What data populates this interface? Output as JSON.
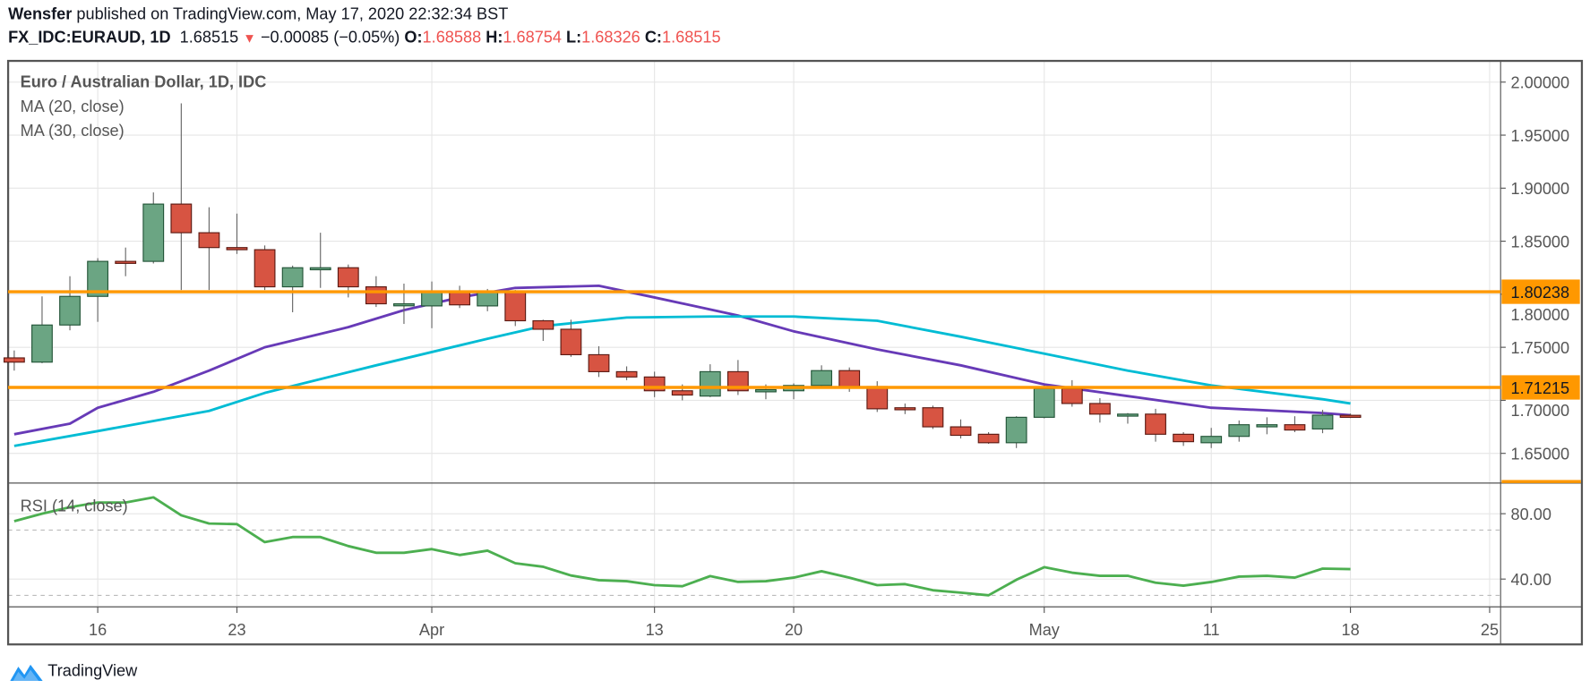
{
  "header": {
    "author": "Wensfer",
    "published": "published on TradingView.com, May 17, 2020 22:32:34 BST",
    "symbol": "FX_IDC:EURAUD, 1D",
    "last": "1.68515",
    "change_icon": "triangle-down-icon",
    "change": "−0.00085 (−0.05%)",
    "o_label": "O:",
    "o": "1.68588",
    "h_label": "H:",
    "h": "1.68754",
    "l_label": "L:",
    "l": "1.68326",
    "c_label": "C:",
    "c": "1.68515"
  },
  "legend": {
    "title": "Euro / Australian Dollar, 1D, IDC",
    "ma20": "MA (20, close)",
    "ma30": "MA (30, close)",
    "rsi": "RSI (14, close)"
  },
  "footer": {
    "logo_text": "TradingView"
  },
  "colors": {
    "up": "#6ba583",
    "up_border": "#225437",
    "down": "#d75442",
    "down_border": "#5b1a13",
    "ma20": "#673ab7",
    "ma30": "#00bcd4",
    "level": "#ff9800",
    "rsi": "#4caf50",
    "grid": "#e6e6e6"
  },
  "chart_data": [
    {
      "type": "candlestick",
      "ylim": [
        1.622,
        2.02
      ],
      "y_ticks": [
        "2.00000",
        "1.95000",
        "1.90000",
        "1.85000",
        "1.80000",
        "1.75000",
        "1.70000",
        "1.65000"
      ],
      "x_ticks": [
        {
          "label": "16",
          "date": "2020-03-16"
        },
        {
          "label": "23",
          "date": "2020-03-23"
        },
        {
          "label": "Apr",
          "date": "2020-04-01"
        },
        {
          "label": "13",
          "date": "2020-04-13"
        },
        {
          "label": "20",
          "date": "2020-04-20"
        },
        {
          "label": "May",
          "date": "2020-05-01"
        },
        {
          "label": "11",
          "date": "2020-05-11"
        },
        {
          "label": "18",
          "date": "2020-05-18"
        },
        {
          "label": "25",
          "date": "2020-05-25"
        }
      ],
      "grid": true,
      "dates": [
        "2020-03-11",
        "2020-03-12",
        "2020-03-13",
        "2020-03-16",
        "2020-03-17",
        "2020-03-18",
        "2020-03-19",
        "2020-03-20",
        "2020-03-23",
        "2020-03-24",
        "2020-03-25",
        "2020-03-26",
        "2020-03-27",
        "2020-03-30",
        "2020-03-31",
        "2020-04-01",
        "2020-04-02",
        "2020-04-03",
        "2020-04-06",
        "2020-04-07",
        "2020-04-08",
        "2020-04-09",
        "2020-04-10",
        "2020-04-13",
        "2020-04-14",
        "2020-04-15",
        "2020-04-16",
        "2020-04-17",
        "2020-04-20",
        "2020-04-21",
        "2020-04-22",
        "2020-04-23",
        "2020-04-24",
        "2020-04-27",
        "2020-04-28",
        "2020-04-29",
        "2020-04-30",
        "2020-05-01",
        "2020-05-04",
        "2020-05-05",
        "2020-05-06",
        "2020-05-07",
        "2020-05-08",
        "2020-05-11",
        "2020-05-12",
        "2020-05-13",
        "2020-05-14",
        "2020-05-15",
        "2020-05-18"
      ],
      "ohlc": [
        [
          1.74,
          1.747,
          1.728,
          1.736
        ],
        [
          1.736,
          1.798,
          1.735,
          1.771
        ],
        [
          1.771,
          1.817,
          1.766,
          1.798
        ],
        [
          1.798,
          1.834,
          1.774,
          1.831
        ],
        [
          1.831,
          1.844,
          1.817,
          1.83
        ],
        [
          1.831,
          1.896,
          1.829,
          1.885
        ],
        [
          1.885,
          1.98,
          1.804,
          1.858
        ],
        [
          1.858,
          1.882,
          1.804,
          1.844
        ],
        [
          1.844,
          1.876,
          1.838,
          1.842
        ],
        [
          1.842,
          1.846,
          1.804,
          1.807
        ],
        [
          1.807,
          1.827,
          1.783,
          1.825
        ],
        [
          1.825,
          1.858,
          1.806,
          1.825
        ],
        [
          1.825,
          1.828,
          1.797,
          1.807
        ],
        [
          1.807,
          1.817,
          1.788,
          1.791
        ],
        [
          1.79,
          1.81,
          1.772,
          1.791
        ],
        [
          1.789,
          1.812,
          1.768,
          1.802
        ],
        [
          1.802,
          1.808,
          1.787,
          1.79
        ],
        [
          1.789,
          1.805,
          1.784,
          1.802
        ],
        [
          1.802,
          1.804,
          1.77,
          1.775
        ],
        [
          1.775,
          1.776,
          1.756,
          1.767
        ],
        [
          1.767,
          1.776,
          1.741,
          1.743
        ],
        [
          1.743,
          1.751,
          1.722,
          1.727
        ],
        [
          1.727,
          1.732,
          1.719,
          1.722
        ],
        [
          1.722,
          1.727,
          1.703,
          1.709
        ],
        [
          1.709,
          1.715,
          1.7,
          1.705
        ],
        [
          1.704,
          1.734,
          1.703,
          1.727
        ],
        [
          1.727,
          1.738,
          1.705,
          1.709
        ],
        [
          1.708,
          1.715,
          1.701,
          1.71
        ],
        [
          1.709,
          1.716,
          1.701,
          1.714
        ],
        [
          1.714,
          1.733,
          1.712,
          1.728
        ],
        [
          1.728,
          1.731,
          1.708,
          1.713
        ],
        [
          1.713,
          1.718,
          1.689,
          1.692
        ],
        [
          1.693,
          1.697,
          1.687,
          1.692
        ],
        [
          1.693,
          1.695,
          1.673,
          1.675
        ],
        [
          1.675,
          1.682,
          1.664,
          1.667
        ],
        [
          1.668,
          1.67,
          1.659,
          1.66
        ],
        [
          1.66,
          1.685,
          1.655,
          1.684
        ],
        [
          1.684,
          1.714,
          1.683,
          1.711
        ],
        [
          1.711,
          1.719,
          1.694,
          1.697
        ],
        [
          1.697,
          1.702,
          1.679,
          1.687
        ],
        [
          1.687,
          1.688,
          1.678,
          1.687
        ],
        [
          1.687,
          1.692,
          1.661,
          1.668
        ],
        [
          1.668,
          1.67,
          1.657,
          1.661
        ],
        [
          1.66,
          1.674,
          1.655,
          1.666
        ],
        [
          1.666,
          1.681,
          1.661,
          1.677
        ],
        [
          1.675,
          1.684,
          1.668,
          1.677
        ],
        [
          1.677,
          1.685,
          1.67,
          1.672
        ],
        [
          1.673,
          1.691,
          1.669,
          1.686
        ],
        [
          1.68588,
          1.68754,
          1.68326,
          1.68515
        ]
      ],
      "series": [
        {
          "name": "MA (20, close)",
          "points": [
            [
              "2020-03-11",
              1.668
            ],
            [
              "2020-03-13",
              1.678
            ],
            [
              "2020-03-16",
              1.693
            ],
            [
              "2020-03-18",
              1.708
            ],
            [
              "2020-03-20",
              1.728
            ],
            [
              "2020-03-24",
              1.75
            ],
            [
              "2020-03-27",
              1.769
            ],
            [
              "2020-03-31",
              1.785
            ],
            [
              "2020-04-02",
              1.797
            ],
            [
              "2020-04-06",
              1.806
            ],
            [
              "2020-04-09",
              1.808
            ],
            [
              "2020-04-13",
              1.797
            ],
            [
              "2020-04-16",
              1.78
            ],
            [
              "2020-04-20",
              1.765
            ],
            [
              "2020-04-23",
              1.748
            ],
            [
              "2020-04-28",
              1.733
            ],
            [
              "2020-05-01",
              1.715
            ],
            [
              "2020-05-06",
              1.704
            ],
            [
              "2020-05-11",
              1.693
            ],
            [
              "2020-05-15",
              1.688
            ],
            [
              "2020-05-18",
              1.686
            ]
          ]
        },
        {
          "name": "MA (30, close)",
          "points": [
            [
              "2020-03-11",
              1.657
            ],
            [
              "2020-03-16",
              1.671
            ],
            [
              "2020-03-20",
              1.69
            ],
            [
              "2020-03-24",
              1.707
            ],
            [
              "2020-03-30",
              1.733
            ],
            [
              "2020-04-03",
              1.758
            ],
            [
              "2020-04-07",
              1.77
            ],
            [
              "2020-04-10",
              1.778
            ],
            [
              "2020-04-15",
              1.779
            ],
            [
              "2020-04-20",
              1.779
            ],
            [
              "2020-04-23",
              1.775
            ],
            [
              "2020-04-28",
              1.76
            ],
            [
              "2020-05-01",
              1.744
            ],
            [
              "2020-05-06",
              1.728
            ],
            [
              "2020-05-11",
              1.714
            ],
            [
              "2020-05-15",
              1.701
            ],
            [
              "2020-05-18",
              1.697
            ]
          ]
        }
      ],
      "levels": [
        {
          "value": 1.80238,
          "label": "1.80238"
        },
        {
          "value": 1.71215,
          "label": "1.71215"
        }
      ]
    },
    {
      "type": "line",
      "name": "RSI (14, close)",
      "ylim": [
        23,
        98.75
      ],
      "y_ticks": [
        "80.00",
        "40.00"
      ],
      "bands": [
        70,
        30
      ],
      "values": [
        75.4,
        80,
        84,
        86.8,
        86.8,
        90,
        79,
        74,
        73.6,
        62.6,
        65.7,
        65.7,
        60.2,
        56.1,
        56.1,
        58.3,
        54.7,
        57.4,
        49.7,
        47.5,
        42.2,
        39.3,
        38.7,
        36.3,
        35.6,
        41.8,
        38.3,
        38.7,
        40.9,
        44.8,
        40.9,
        36.3,
        36.9,
        33.2,
        31.7,
        30.1,
        39.6,
        47.3,
        43.9,
        42.0,
        42.0,
        37.8,
        36.0,
        38.2,
        41.5,
        42.0,
        40.9,
        46.4,
        46.1
      ]
    }
  ]
}
